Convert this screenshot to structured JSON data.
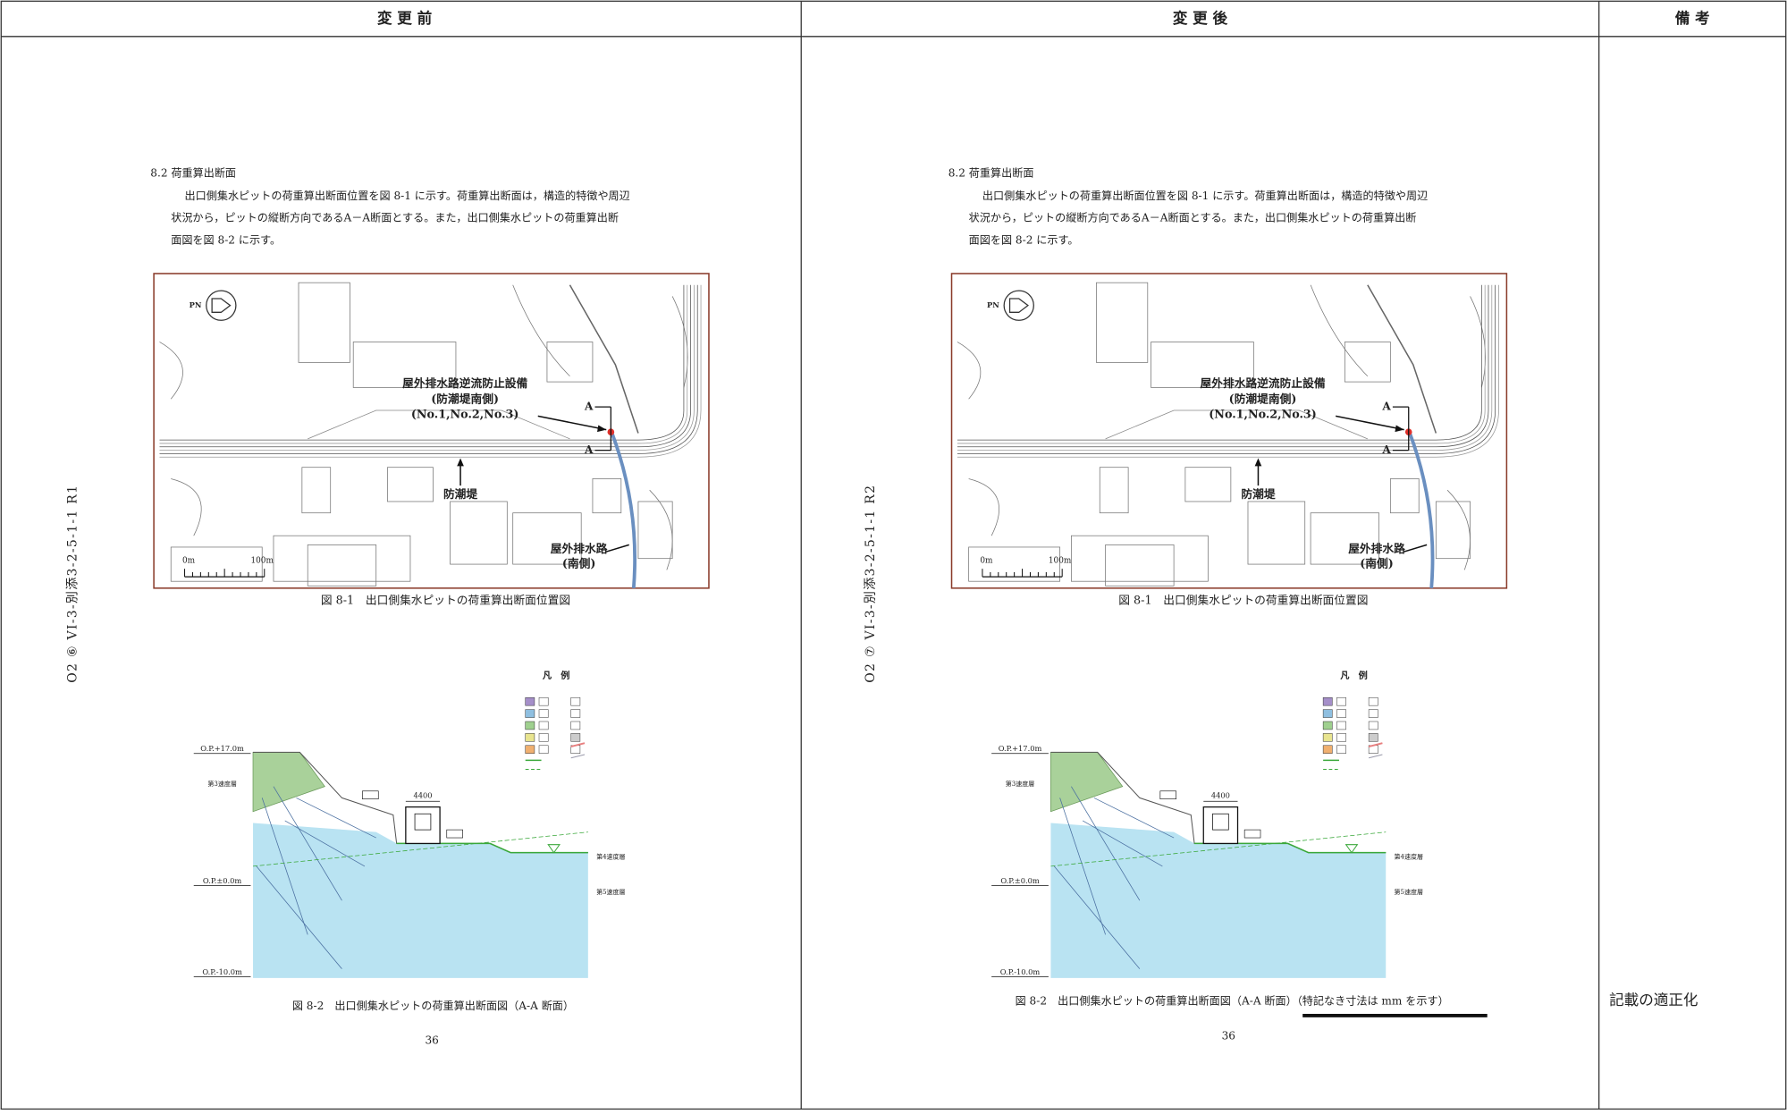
{
  "header": {
    "columns": [
      "変 更 前",
      "変 更 後",
      "備 考"
    ]
  },
  "pages": [
    {
      "side_label": "O2 ⑥ VI-3-別添3-2-5-1-1 R1",
      "section_title": "8.2 荷重算出断面",
      "body": [
        "出口側集水ピットの荷重算出断面位置を図 8-1 に示す。荷重算出断面は，構造的特徴や周辺",
        "状況から，ピットの縦断方向であるA－A断面とする。また，出口側集水ピットの荷重算出断",
        "面図を図 8-2 に示す。"
      ],
      "figure1": {
        "compass": "PN",
        "facility": [
          "屋外排水路逆流防止設備",
          "(防潮堤南側)",
          "(No.1,No.2,No.3)"
        ],
        "section_marks": [
          "A",
          "A"
        ],
        "seawall": "防潮堤",
        "drain": [
          "屋外排水路",
          "(南側)"
        ],
        "scale": [
          "0m",
          "100m"
        ],
        "caption": "図 8-1　出口側集水ピットの荷重算出断面位置図"
      },
      "figure2": {
        "legend_title": "凡　例",
        "elevations": [
          "O.P.+17.0m",
          "O.P.±0.0m",
          "O.P.-10.0m"
        ],
        "width": "4400",
        "layers_left": [
          "第3速度層"
        ],
        "layers_right": [
          "第4速度層",
          "第5速度層"
        ],
        "caption": [
          "図 8-2　出口側集水ピットの荷重算出断面図（A-A 断面）"
        ]
      },
      "page_number": "36"
    },
    {
      "side_label": "O2 ⑦ VI-3-別添3-2-5-1-1 R2",
      "section_title": "8.2 荷重算出断面",
      "body": [
        "出口側集水ピットの荷重算出断面位置を図 8-1 に示す。荷重算出断面は，構造的特徴や周辺",
        "状況から，ピットの縦断方向であるA－A断面とする。また，出口側集水ピットの荷重算出断",
        "面図を図 8-2 に示す。"
      ],
      "figure1": {
        "compass": "PN",
        "facility": [
          "屋外排水路逆流防止設備",
          "(防潮堤南側)",
          "(No.1,No.2,No.3)"
        ],
        "section_marks": [
          "A",
          "A"
        ],
        "seawall": "防潮堤",
        "drain": [
          "屋外排水路",
          "(南側)"
        ],
        "scale": [
          "0m",
          "100m"
        ],
        "caption": "図 8-1　出口側集水ピットの荷重算出断面位置図"
      },
      "figure2": {
        "legend_title": "凡　例",
        "elevations": [
          "O.P.+17.0m",
          "O.P.±0.0m",
          "O.P.-10.0m"
        ],
        "width": "4400",
        "layers_left": [
          "第3速度層"
        ],
        "layers_right": [
          "第4速度層",
          "第5速度層"
        ],
        "caption": [
          "図 8-2　出口側集水ピットの荷重算出断面図（A-A 断面）",
          "（特記なき寸法は mm を示す）"
        ]
      },
      "page_number": "36"
    }
  ],
  "remarks_note": "記載の適正化"
}
